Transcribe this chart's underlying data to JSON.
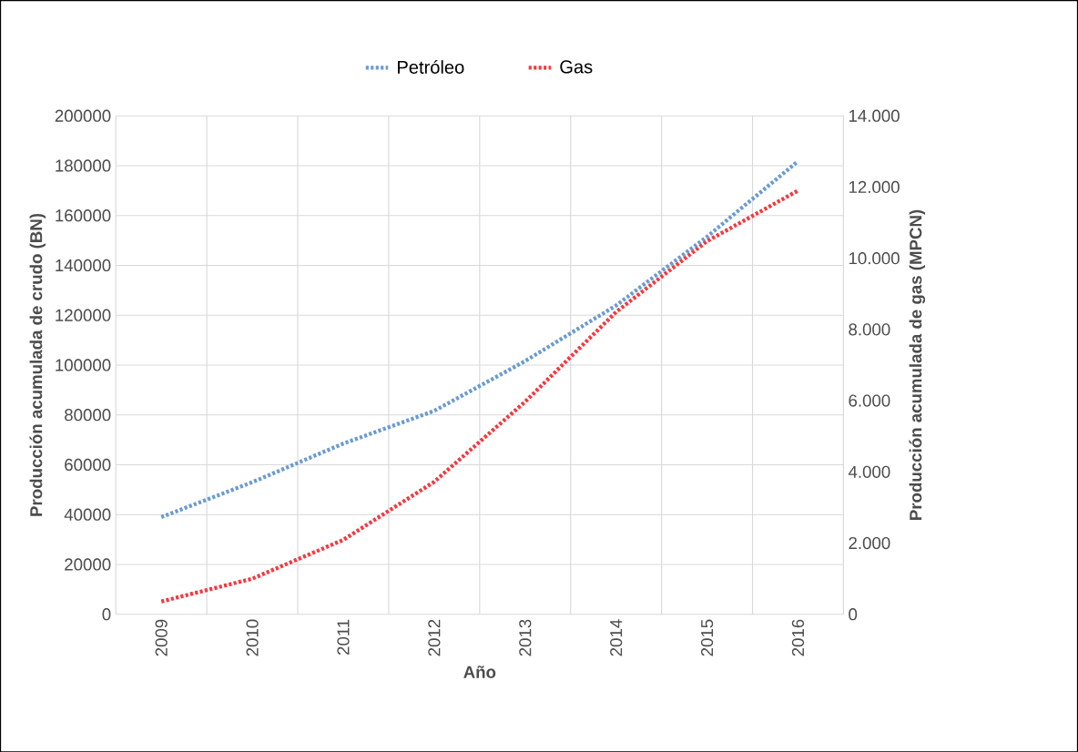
{
  "chart_data": {
    "type": "line",
    "xlabel": "Año",
    "ylabel": "Producción  acumulada de crudo (BN)",
    "y2label": "Producción acumulada de gas (MPCN)",
    "categories": [
      "2009",
      "2010",
      "2011",
      "2012",
      "2013",
      "2014",
      "2015",
      "2016"
    ],
    "series": [
      {
        "name": "Petróleo",
        "color": "#6a9bd0",
        "values": [
          39000,
          53000,
          68500,
          81600,
          101600,
          123900,
          151500,
          181800
        ]
      },
      {
        "name": "Gas",
        "color": "#f5383f",
        "axis": "y2",
        "values": [
          360,
          1000,
          2090,
          3720,
          5970,
          8490,
          10480,
          11900
        ]
      }
    ],
    "ylim": [
      0,
      200000
    ],
    "yticks": [
      0,
      20000,
      40000,
      60000,
      80000,
      100000,
      120000,
      140000,
      160000,
      180000,
      200000
    ],
    "y2lim": [
      0,
      14000
    ],
    "y2ticks": [
      0,
      {
        "value": 2000,
        "label": "2.000"
      },
      {
        "value": 4000,
        "label": "4.000"
      },
      {
        "value": 6000,
        "label": "6.000"
      },
      {
        "value": 8000,
        "label": "8.000"
      },
      {
        "value": 10000,
        "label": "10.000"
      },
      {
        "value": 12000,
        "label": "12.000"
      },
      {
        "value": 14000,
        "label": "14.000"
      }
    ],
    "grid": true,
    "legend": "top",
    "line_style": "dotted",
    "marker": "none"
  }
}
